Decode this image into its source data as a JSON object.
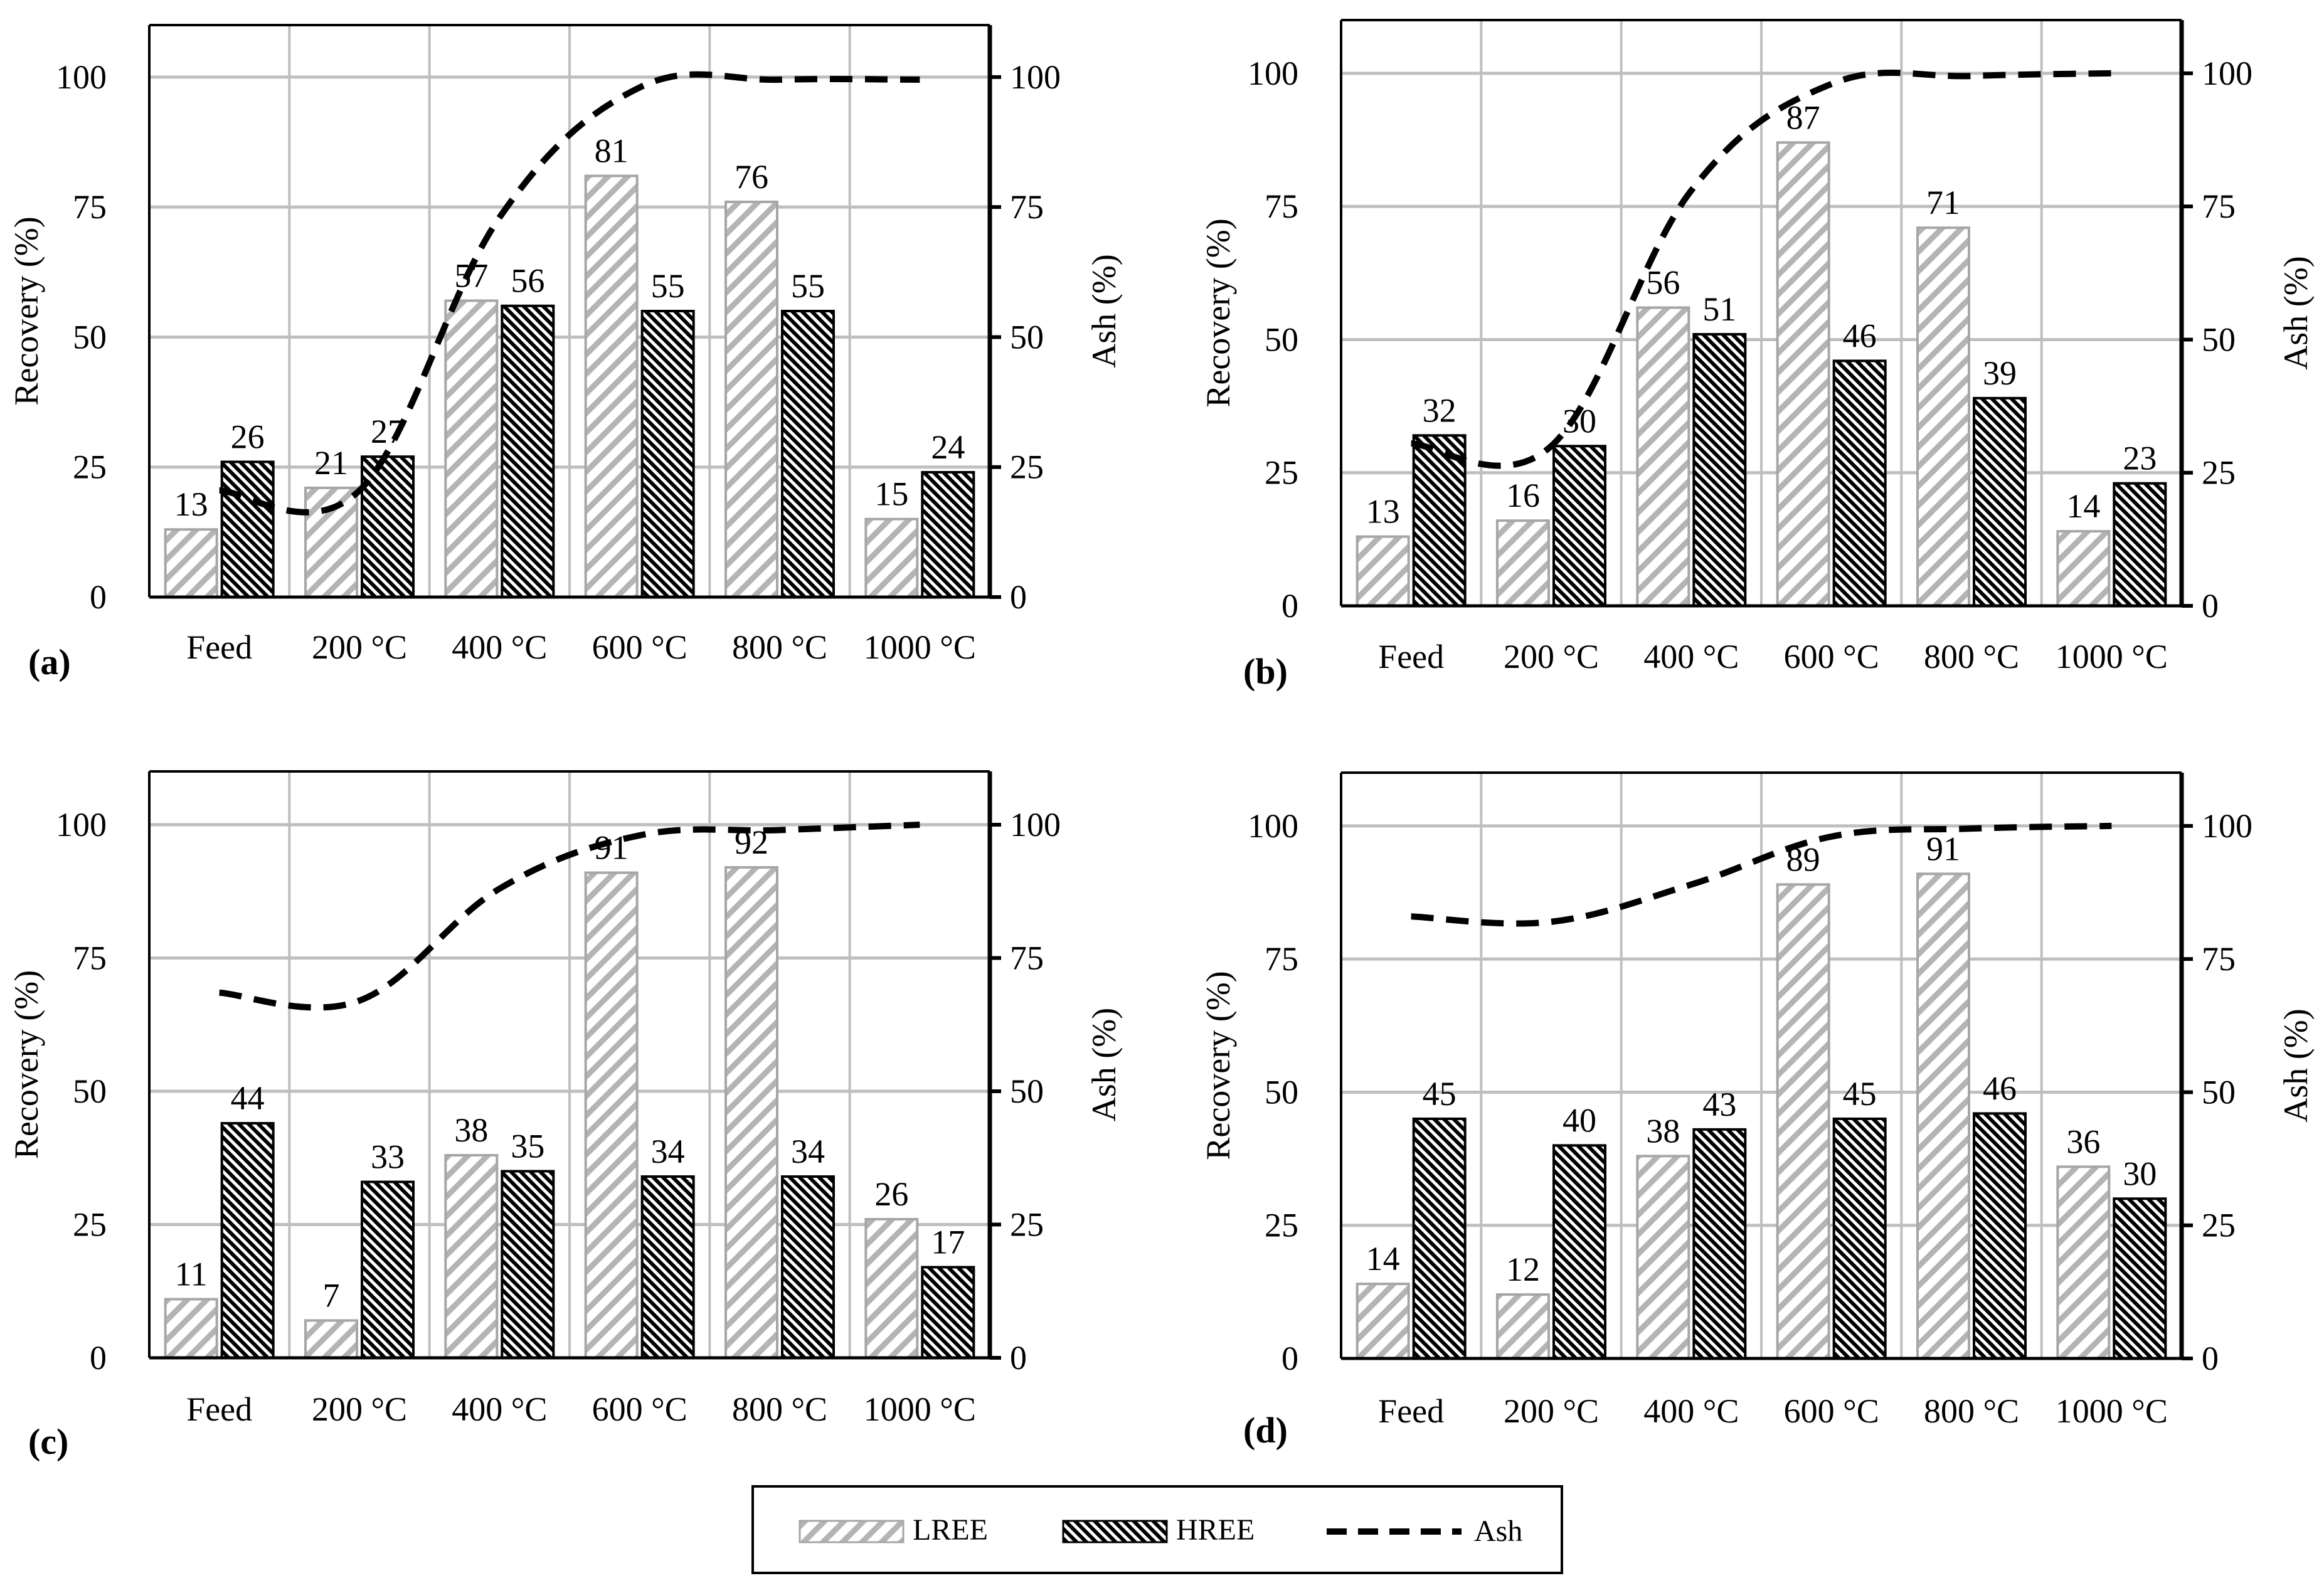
{
  "colors": {
    "lree_stroke": "#a6a6a6",
    "lree_hatch": "#b4b4b4",
    "hree_stroke": "#000000",
    "ash_line": "#000000",
    "grid": "#bfbfbf",
    "text": "#000000"
  },
  "legend": {
    "lree": "LREE",
    "hree": "HREE",
    "ash": "Ash"
  },
  "chart_data": [
    {
      "type": "bar",
      "panel_label": "(a)",
      "categories": [
        "Feed",
        "200 °C",
        "400 °C",
        "600 °C",
        "800 °C",
        "1000 °C"
      ],
      "series": [
        {
          "name": "LREE",
          "axis": "left",
          "values": [
            13,
            21,
            57,
            81,
            76,
            15
          ],
          "labels": [
            "13",
            "21",
            "57",
            "81",
            "76",
            "15"
          ]
        },
        {
          "name": "HREE",
          "axis": "left",
          "values": [
            26,
            27,
            56,
            55,
            55,
            24
          ],
          "labels": [
            "26",
            "27",
            "56",
            "55",
            "55",
            "24"
          ]
        },
        {
          "name": "Ash",
          "axis": "right",
          "type": "line",
          "style": "dashed",
          "values": [
            20.5,
            20.5,
            73,
            98,
            99.5,
            99.5
          ]
        }
      ],
      "ylabel": "Recovery (%)",
      "y2label": "Ash (%)",
      "ylim": [
        0,
        110
      ],
      "y2lim": [
        0,
        110
      ],
      "yticks": [
        "0",
        "25",
        "50",
        "75",
        "100"
      ],
      "y2ticks": [
        "0",
        "25",
        "50",
        "75",
        "100"
      ]
    },
    {
      "type": "bar",
      "panel_label": "(b)",
      "categories": [
        "Feed",
        "200 °C",
        "400 °C",
        "600 °C",
        "800 °C",
        "1000 °C"
      ],
      "series": [
        {
          "name": "LREE",
          "axis": "left",
          "values": [
            13,
            16,
            56,
            87,
            71,
            14
          ],
          "labels": [
            "13",
            "16",
            "56",
            "87",
            "71",
            "14"
          ]
        },
        {
          "name": "HREE",
          "axis": "left",
          "values": [
            32,
            30,
            51,
            46,
            39,
            23
          ],
          "labels": [
            "32",
            "30",
            "51",
            "46",
            "39",
            "23"
          ]
        },
        {
          "name": "Ash",
          "axis": "right",
          "type": "line",
          "style": "dashed",
          "values": [
            30.5,
            30,
            78,
            98,
            99.5,
            100
          ]
        }
      ],
      "ylabel": "Recovery (%)",
      "y2label": "Ash (%)",
      "ylim": [
        0,
        110
      ],
      "y2lim": [
        0,
        110
      ],
      "yticks": [
        "0",
        "25",
        "50",
        "75",
        "100"
      ],
      "y2ticks": [
        "0",
        "25",
        "50",
        "75",
        "100"
      ]
    },
    {
      "type": "bar",
      "panel_label": "(c)",
      "categories": [
        "Feed",
        "200 °C",
        "400 °C",
        "600 °C",
        "800 °C",
        "1000 °C"
      ],
      "series": [
        {
          "name": "LREE",
          "axis": "left",
          "values": [
            11,
            7,
            38,
            91,
            92,
            26
          ],
          "labels": [
            "11",
            "7",
            "38",
            "91",
            "92",
            "26"
          ]
        },
        {
          "name": "HREE",
          "axis": "left",
          "values": [
            44,
            33,
            35,
            34,
            34,
            17
          ],
          "labels": [
            "44",
            "33",
            "35",
            "34",
            "34",
            "17"
          ]
        },
        {
          "name": "Ash",
          "axis": "right",
          "type": "line",
          "style": "dashed",
          "values": [
            68.5,
            67,
            88,
            98,
            99,
            100
          ]
        }
      ],
      "ylabel": "Recovery (%)",
      "y2label": "Ash (%)",
      "ylim": [
        0,
        110
      ],
      "y2lim": [
        0,
        110
      ],
      "yticks": [
        "0",
        "25",
        "50",
        "75",
        "100"
      ],
      "y2ticks": [
        "0",
        "25",
        "50",
        "75",
        "100"
      ]
    },
    {
      "type": "bar",
      "panel_label": "(d)",
      "categories": [
        "Feed",
        "200 °C",
        "400 °C",
        "600 °C",
        "800 °C",
        "1000 °C"
      ],
      "series": [
        {
          "name": "LREE",
          "axis": "left",
          "values": [
            14,
            12,
            38,
            89,
            91,
            36
          ],
          "labels": [
            "14",
            "12",
            "38",
            "89",
            "91",
            "36"
          ]
        },
        {
          "name": "HREE",
          "axis": "left",
          "values": [
            45,
            40,
            43,
            45,
            46,
            30
          ],
          "labels": [
            "45",
            "40",
            "43",
            "45",
            "46",
            "30"
          ]
        },
        {
          "name": "Ash",
          "axis": "right",
          "type": "line",
          "style": "dashed",
          "values": [
            83,
            82,
            89,
            98,
            99.5,
            100
          ]
        }
      ],
      "ylabel": "Recovery (%)",
      "y2label": "Ash (%)",
      "ylim": [
        0,
        110
      ],
      "y2lim": [
        0,
        110
      ],
      "yticks": [
        "0",
        "25",
        "50",
        "75",
        "100"
      ],
      "y2ticks": [
        "0",
        "25",
        "50",
        "75",
        "100"
      ]
    }
  ]
}
